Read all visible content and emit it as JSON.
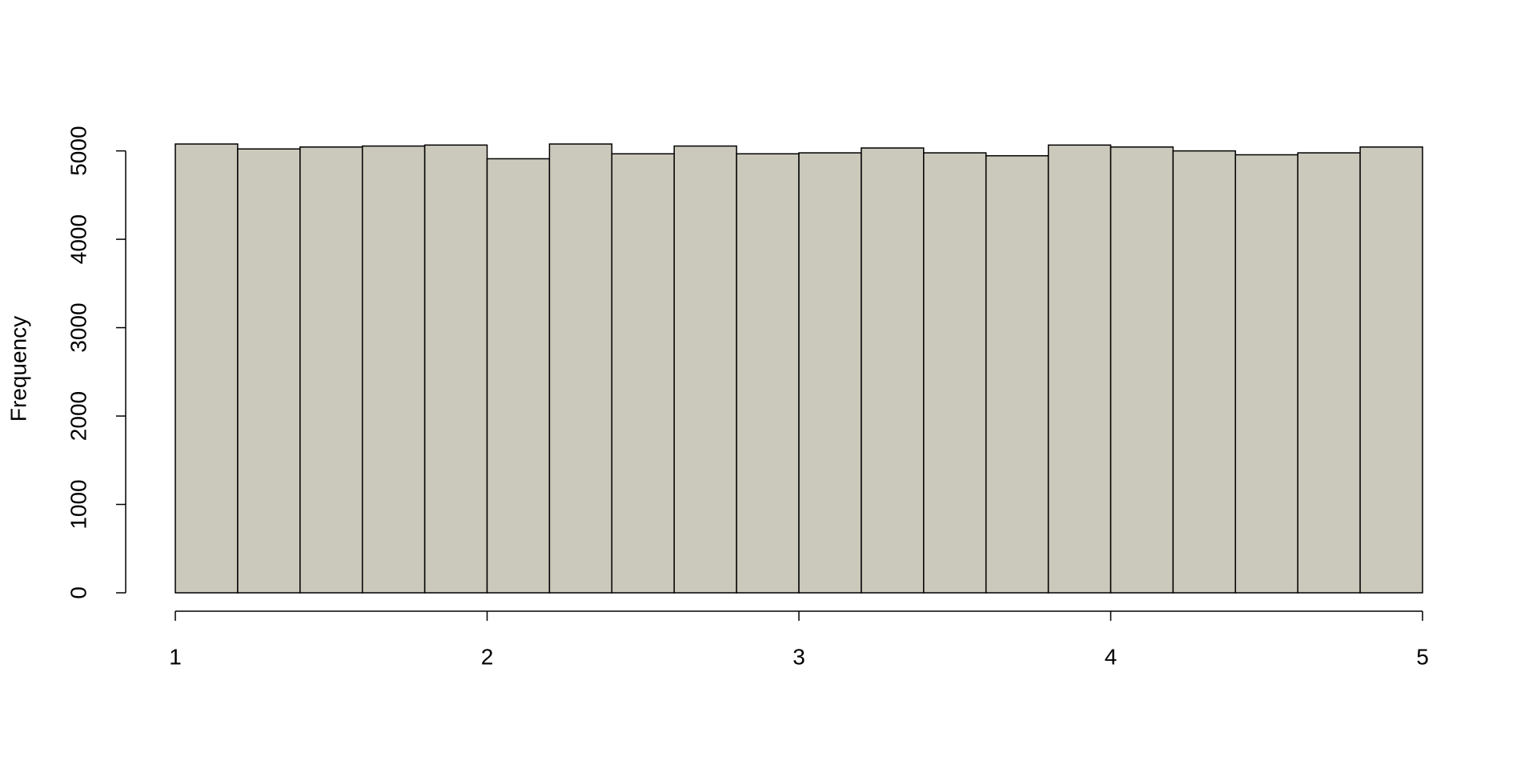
{
  "chart_data": {
    "type": "histogram",
    "ylabel": "Frequency",
    "bins": [
      1,
      1.2,
      1.4,
      1.6,
      1.8,
      2,
      2.2,
      2.4,
      2.6,
      2.8,
      3,
      3.2,
      3.4,
      3.6,
      3.8,
      4,
      4.2,
      4.4,
      4.6,
      4.8,
      5
    ],
    "values": [
      5078,
      5022,
      5044,
      5055,
      5066,
      4911,
      5078,
      4967,
      5055,
      4967,
      4978,
      5033,
      4978,
      4945,
      5066,
      5044,
      5000,
      4956,
      4978,
      5044
    ],
    "color": "#cbc9bb",
    "xlim": [
      1,
      5
    ],
    "xticks": [
      1,
      2,
      3,
      4,
      5
    ],
    "ylim": [
      0,
      5078
    ],
    "yticks": [
      0,
      1000,
      2000,
      3000,
      4000,
      5000
    ],
    "grid": false
  }
}
